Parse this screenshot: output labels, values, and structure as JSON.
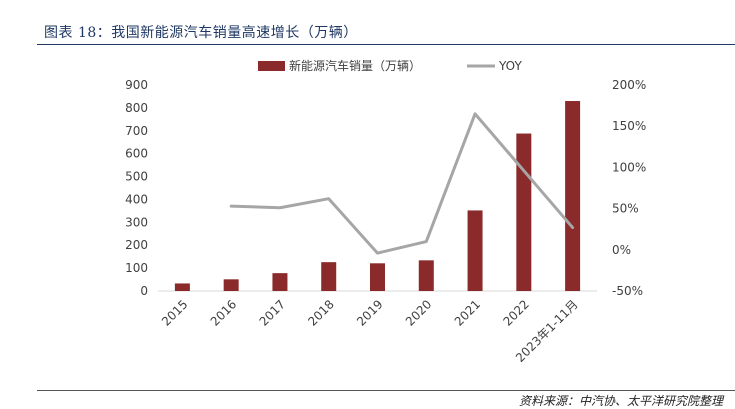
{
  "figure": {
    "title": "图表 18：我国新能源汽车销量高速增长（万辆）",
    "source": "资料来源：中汽协、太平洋研究院整理"
  },
  "chart_data": {
    "type": "bar",
    "categories": [
      "2015",
      "2016",
      "2017",
      "2018",
      "2019",
      "2020",
      "2021",
      "2022",
      "2023年1-11月"
    ],
    "series": [
      {
        "name": "新能源汽车销量（万辆）",
        "type": "bar",
        "axis": "left",
        "color": "#8b2a2a",
        "values": [
          33,
          51,
          78,
          126,
          121,
          134,
          352,
          688,
          830
        ]
      },
      {
        "name": "YOY",
        "type": "line",
        "axis": "right",
        "color": "#a6a6a6",
        "values": [
          null,
          0.53,
          0.51,
          0.62,
          -0.04,
          0.1,
          1.65,
          0.96,
          0.27
        ]
      }
    ],
    "y_left": {
      "min": 0,
      "max": 900,
      "ticks": [
        "0",
        "100",
        "200",
        "300",
        "400",
        "500",
        "600",
        "700",
        "800",
        "900"
      ]
    },
    "y_right": {
      "min": -0.5,
      "max": 2.0,
      "ticks": [
        "-50%",
        "0%",
        "50%",
        "100%",
        "150%",
        "200%"
      ]
    },
    "legend_position": "top-center",
    "grid": false
  }
}
